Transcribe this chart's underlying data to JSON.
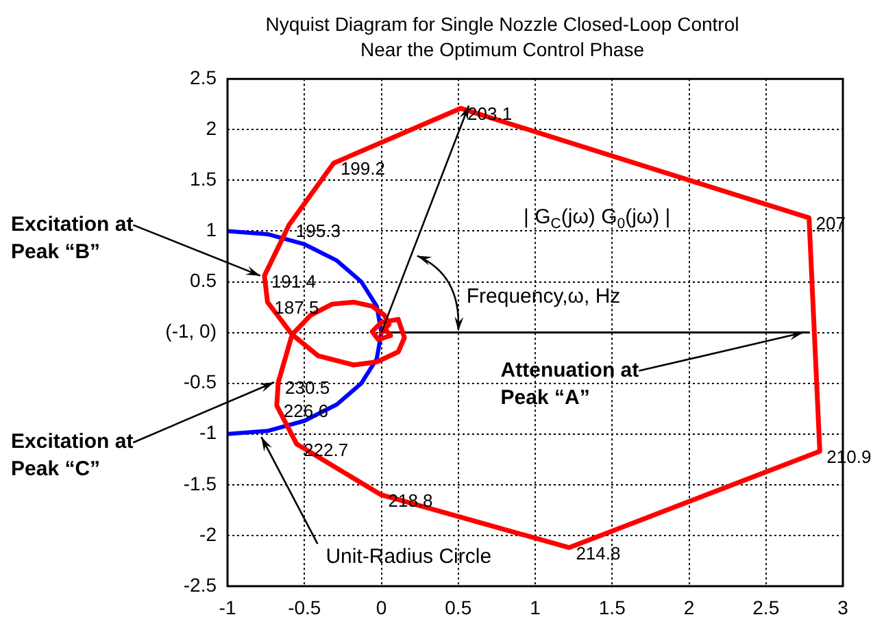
{
  "chart_data": {
    "type": "line",
    "title": "Nyquist Diagram for Single Nozzle Closed-Loop Control",
    "subtitle": "Near the Optimum Control Phase",
    "series": [
      {
        "color": "#ff0000",
        "x": [
          0.02,
          0.06,
          -0.02,
          -0.06,
          0.0,
          0.11,
          0.15,
          0.11,
          -0.03,
          -0.18,
          -0.41,
          -0.58,
          -0.74,
          -0.76,
          -0.6,
          -0.31,
          0.515,
          2.78,
          2.85,
          1.22,
          0.0,
          -0.55,
          -0.68,
          -0.67,
          -0.58,
          -0.46,
          -0.32,
          -0.18,
          -0.06,
          0.02,
          0.05,
          0.0
        ],
        "values": [
          0.04,
          -0.03,
          -0.07,
          0.01,
          0.1,
          0.13,
          -0.05,
          -0.19,
          -0.29,
          -0.32,
          -0.23,
          -0.02,
          0.3,
          0.56,
          1.06,
          1.67,
          2.21,
          1.13,
          -1.17,
          -2.12,
          -1.6,
          -1.1,
          -0.72,
          -0.49,
          -0.02,
          0.17,
          0.28,
          0.3,
          0.26,
          0.17,
          0.08,
          0.0
        ]
      },
      {
        "color": "#0000ff",
        "x": [
          -1,
          -0.74,
          -0.5,
          -0.29,
          -0.13,
          -0.03,
          0,
          -0.03,
          -0.13,
          -0.29,
          -0.5,
          -0.74,
          -1
        ],
        "values": [
          1,
          0.97,
          0.87,
          0.71,
          0.5,
          0.26,
          0,
          -0.26,
          -0.5,
          -0.71,
          -0.87,
          -0.97,
          -1
        ]
      },
      {
        "color": "#000000",
        "x": [
          0,
          2.78
        ],
        "values": [
          0,
          0
        ]
      }
    ],
    "xlim": [
      -1,
      3
    ],
    "xticks": [
      -1,
      -0.5,
      0,
      0.5,
      1,
      1.5,
      2,
      2.5,
      3
    ],
    "ylim": [
      -2.5,
      2.5
    ],
    "yticks": [
      -2.5,
      -2,
      -1.5,
      -1,
      -0.5,
      {
        "value": 0,
        "label": "(-1, 0)"
      },
      0.5,
      1,
      1.5,
      2,
      2.5
    ],
    "grid": true,
    "legend": false,
    "marker": "none",
    "line_style": "solid",
    "annotations": [
      {
        "text": "187.5",
        "x": -0.74,
        "y": 0.3
      },
      {
        "text": "191.4",
        "x": -0.76,
        "y": 0.56
      },
      {
        "text": "195.3",
        "x": -0.6,
        "y": 1.06
      },
      {
        "text": "199.2",
        "x": -0.31,
        "y": 1.67
      },
      {
        "text": "203.1",
        "x": 0.515,
        "y": 2.21
      },
      {
        "text": "207",
        "x": 2.78,
        "y": 1.13
      },
      {
        "text": "210.9",
        "x": 2.85,
        "y": -1.17
      },
      {
        "text": "214.8",
        "x": 1.22,
        "y": -2.12
      },
      {
        "text": "218.8",
        "x": 0.0,
        "y": -1.6
      },
      {
        "text": "222.7",
        "x": -0.55,
        "y": -1.1
      },
      {
        "text": "226.6",
        "x": -0.68,
        "y": -0.72
      },
      {
        "text": "230.5",
        "x": -0.67,
        "y": -0.49
      },
      {
        "text": "Excitation at Peak “B”",
        "x": -0.76,
        "y": 0.56
      },
      {
        "text": "Excitation at Peak “C”",
        "x": -0.67,
        "y": -0.49
      },
      {
        "text": "Attenuation at Peak “A”",
        "x": 2.78,
        "y": 0
      },
      "| G$_{C}$(jω) G$_{0}$(jω) |",
      "Frequency,ω, Hz",
      {
        "text": "Unit-Radius Circle",
        "x": -0.78,
        "y": -0.975
      }
    ]
  }
}
